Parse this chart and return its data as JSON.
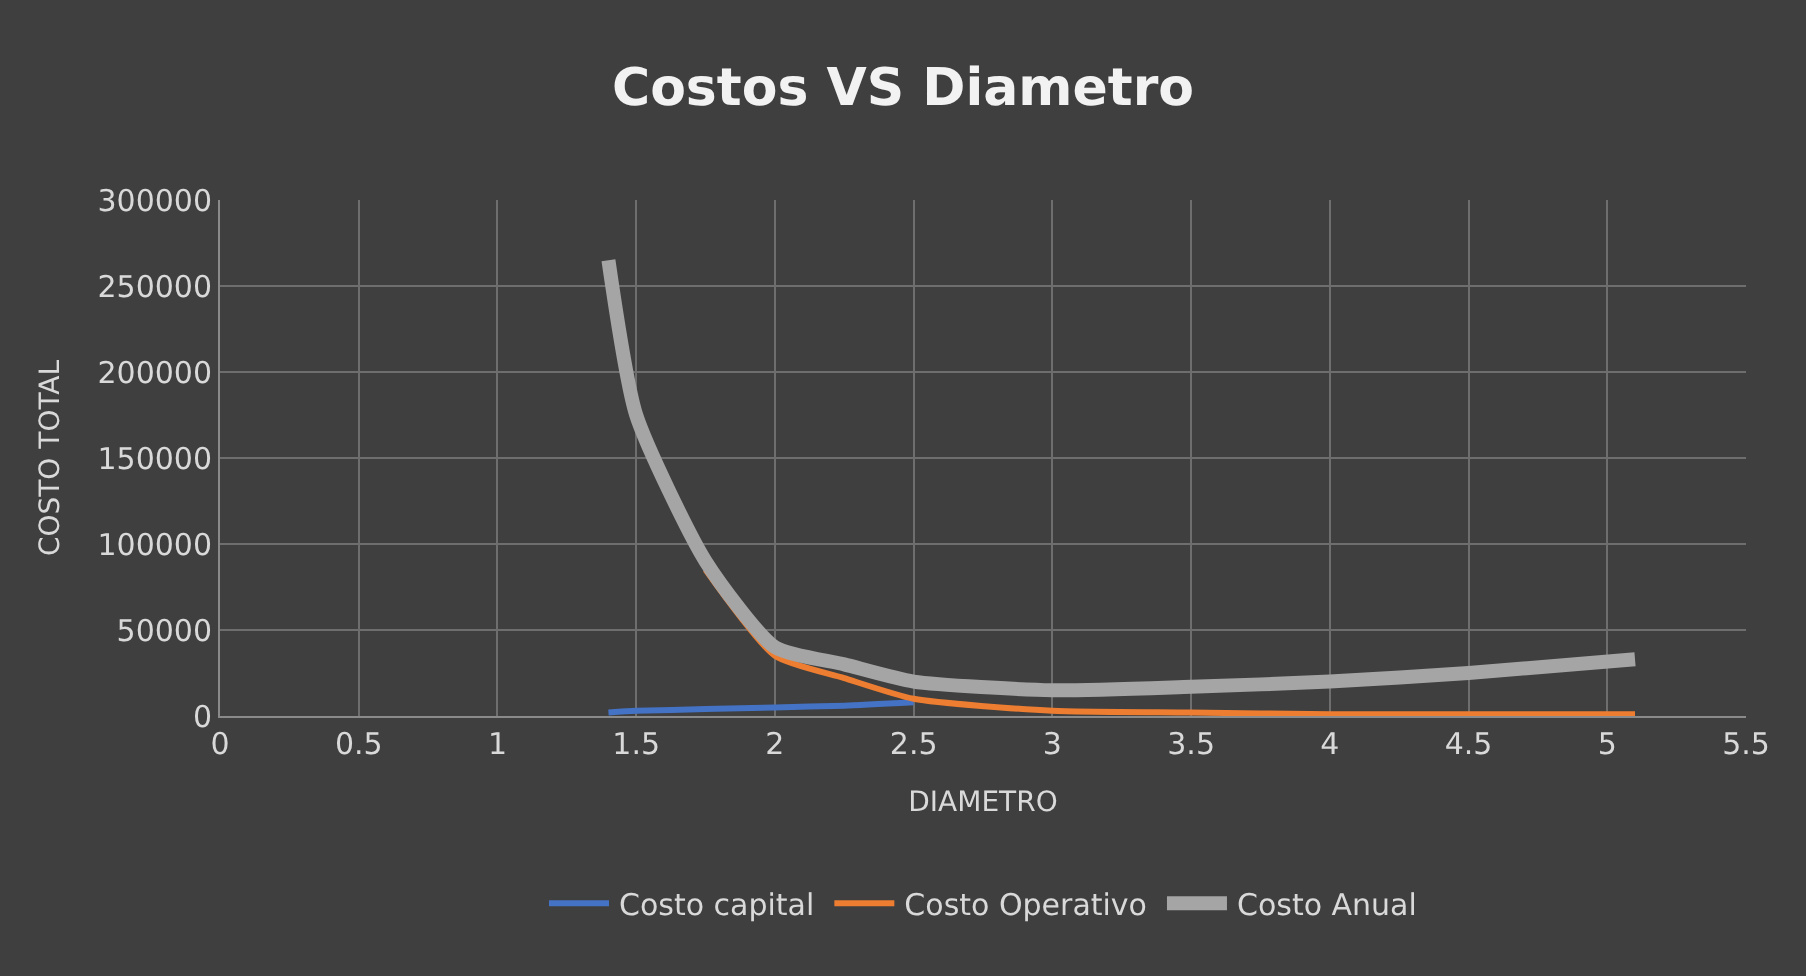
{
  "chart_data": {
    "type": "line",
    "title": "Costos VS Diametro",
    "xlabel": "DIAMETRO",
    "ylabel": "COSTO TOTAL",
    "x": [
      1.4,
      1.5,
      1.75,
      2,
      2.25,
      2.5,
      3,
      3.5,
      4,
      4.5,
      5.1
    ],
    "series": [
      {
        "name": "Costo capital",
        "color": "#4472c4",
        "values": [
          2000,
          3000,
          4000,
          5000,
          6000,
          8000,
          null,
          null,
          null,
          null,
          null
        ]
      },
      {
        "name": "Costo Operativo",
        "color": "#ed7d31",
        "values": [
          null,
          null,
          85000,
          35000,
          22000,
          10000,
          3000,
          2000,
          1000,
          1000,
          1000
        ]
      },
      {
        "name": "Costo Anual",
        "color": "#a5a5a5",
        "values": [
          265000,
          175000,
          90000,
          40000,
          30000,
          20000,
          15000,
          17000,
          20000,
          25000,
          33000
        ]
      }
    ],
    "xlim": [
      0,
      5.5
    ],
    "xticks": [
      0,
      0.5,
      1,
      1.5,
      2,
      2.5,
      3,
      3.5,
      4,
      4.5,
      5,
      5.5
    ],
    "ylim": [
      0,
      300000
    ],
    "yticks": [
      0,
      50000,
      100000,
      150000,
      200000,
      250000,
      300000
    ],
    "grid": true,
    "legend": "bottom",
    "marker": "none",
    "line_style": "solid"
  }
}
